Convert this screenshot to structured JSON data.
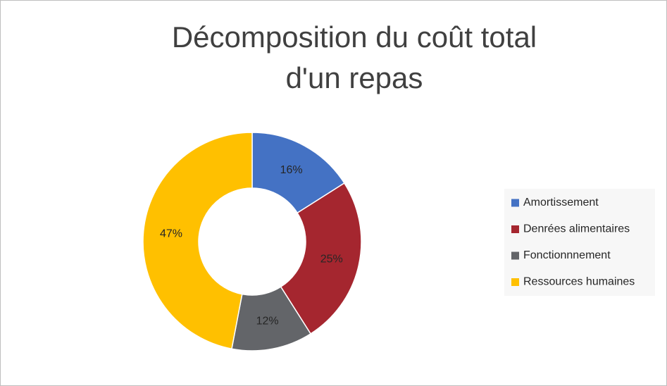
{
  "chart_data": {
    "type": "doughnut",
    "title": "Décomposition du coût total d'un repas",
    "categories": [
      "Amortissement",
      "Denrées alimentaires",
      "Fonctionnnement",
      "Ressources humaines"
    ],
    "values": [
      16,
      25,
      12,
      47
    ],
    "value_labels": [
      "16%",
      "25%",
      "12%",
      "47%"
    ],
    "colors": [
      "#4472c4",
      "#a5262f",
      "#636569",
      "#ffc000"
    ],
    "legend": "right"
  }
}
